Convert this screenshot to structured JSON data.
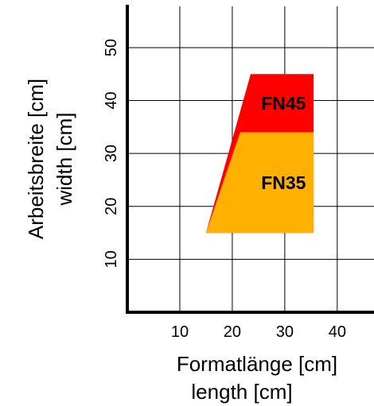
{
  "chart_data": {
    "type": "area",
    "title": "",
    "xlabel": [
      "Formatlänge [cm]",
      "length [cm]"
    ],
    "ylabel": [
      "Arbeitsbreite [cm]",
      "width [cm]"
    ],
    "xlim": [
      0,
      47
    ],
    "ylim": [
      0,
      59
    ],
    "xticks": [
      10,
      20,
      30,
      40
    ],
    "yticks": [
      10,
      20,
      30,
      40,
      50
    ],
    "grid": true,
    "series": [
      {
        "name": "FN45",
        "color": "#ff0000",
        "polygon": [
          [
            15,
            15
          ],
          [
            23.5,
            45
          ],
          [
            35.5,
            45
          ],
          [
            35.5,
            15
          ]
        ]
      },
      {
        "name": "FN35",
        "color": "#ffb000",
        "polygon": [
          [
            15,
            15
          ],
          [
            21.5,
            34
          ],
          [
            35.5,
            34
          ],
          [
            35.5,
            15
          ]
        ]
      }
    ]
  }
}
